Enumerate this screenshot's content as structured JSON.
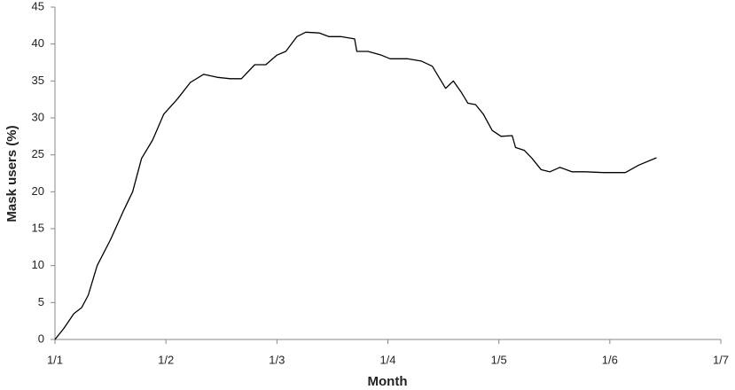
{
  "chart_data": {
    "type": "line",
    "x_label": "Month",
    "y_label": "Mask users (%)",
    "xlim": [
      0,
      6
    ],
    "xticks": [
      {
        "value": 0,
        "label": "1/1"
      },
      {
        "value": 1,
        "label": "1/2"
      },
      {
        "value": 2,
        "label": "1/3"
      },
      {
        "value": 3,
        "label": "1/4"
      },
      {
        "value": 4,
        "label": "1/5"
      },
      {
        "value": 5,
        "label": "1/6"
      },
      {
        "value": 6,
        "label": "1/7"
      }
    ],
    "ylim": [
      0,
      45
    ],
    "yticks": [
      0,
      5,
      10,
      15,
      20,
      25,
      30,
      35,
      40,
      45
    ],
    "grid": false,
    "series": [
      {
        "color": "#000000",
        "x": [
          0,
          0.08,
          0.17,
          0.24,
          0.3,
          0.38,
          0.5,
          0.62,
          0.7,
          0.78,
          0.88,
          0.98,
          1.1,
          1.22,
          1.34,
          1.46,
          1.58,
          1.68,
          1.8,
          1.9,
          2.0,
          2.08,
          2.18,
          2.26,
          2.38,
          2.47,
          2.58,
          2.7,
          2.72,
          2.82,
          2.94,
          3.02,
          3.18,
          3.3,
          3.4,
          3.48,
          3.52,
          3.59,
          3.66,
          3.72,
          3.79,
          3.86,
          3.94,
          4.02,
          4.12,
          4.15,
          4.23,
          4.3,
          4.38,
          4.46,
          4.55,
          4.66,
          4.78,
          4.94,
          5.14,
          5.26,
          5.42
        ],
        "values": [
          0,
          1.5,
          3.5,
          4.3,
          6,
          10,
          13.5,
          17.5,
          20,
          24.5,
          27,
          30.5,
          32.5,
          34.8,
          35.9,
          35.5,
          35.3,
          35.3,
          37.2,
          37.2,
          38.5,
          39,
          41,
          41.6,
          41.5,
          41,
          41,
          40.7,
          39,
          39,
          38.5,
          38,
          38,
          37.7,
          37,
          35,
          34,
          35,
          33.5,
          32,
          31.8,
          30.5,
          28.3,
          27.5,
          27.6,
          26,
          25.6,
          24.5,
          23,
          22.7,
          23.3,
          22.7,
          22.7,
          22.6,
          22.6,
          23.6,
          24.6
        ]
      }
    ]
  }
}
